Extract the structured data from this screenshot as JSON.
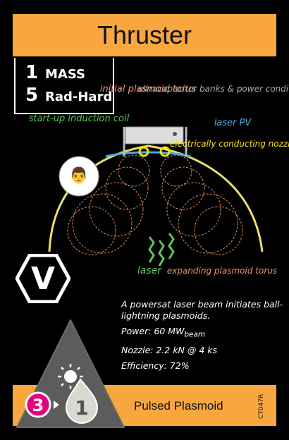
{
  "card": {
    "title": "Thruster",
    "stats": [
      {
        "value": "1",
        "label": "MASS"
      },
      {
        "value": "5",
        "label": "Rad-Hard"
      }
    ],
    "diagram_labels": {
      "initial_plasmoid": "initial plasmoid torus",
      "ultracapacitor": "ultracapacitor banks & power conditioner",
      "startup_coil": "start-up induction coil",
      "laser_pv": "laser PV",
      "nozzle": "electrically conducting nozzle",
      "laser": "laser",
      "expanding": "expanding plasmoid torus"
    },
    "type_badge": "V",
    "description": {
      "line1": "A powersat laser beam initiates ball-lightning plasmoids.",
      "power_prefix": "Power: 60 MW",
      "power_sub": "beam",
      "nozzle": "Nozzle: 2.2 kN @ 4 ks",
      "efficiency": "Efficiency: 72%"
    },
    "triangle": {
      "left_number": "3",
      "right_number": "1",
      "sun_icon": "sun-icon",
      "drop_icon": "drop-icon"
    },
    "bottom_label": "Pulsed Plasmoid",
    "code": "CT047R",
    "colors": {
      "accent": "#f7a73d",
      "magenta": "#e6007e",
      "orange_label": "#f0927a",
      "green_label": "#5fc35a",
      "blue_label": "#4fa8e0",
      "yellow_label": "#f5e312",
      "gray_label": "#aaaaaa"
    }
  }
}
